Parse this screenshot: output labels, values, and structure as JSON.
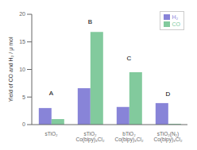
{
  "chart_data": {
    "type": "bar",
    "categories": [
      "sTiO₂",
      "sTiO₂\nCo(bipy)₃Cl₂",
      "bTiO₂\nCo(bipy)₃Cl₂",
      "sTiO₂(N₂)\nCo(bipy)₃Cl₂"
    ],
    "series": [
      {
        "name": "H₂",
        "color": "#8884d8",
        "values": [
          3.0,
          6.6,
          3.2,
          3.9
        ]
      },
      {
        "name": "CO",
        "color": "#82ca9d",
        "values": [
          1.0,
          16.8,
          9.5,
          0.15
        ]
      }
    ],
    "ylabel": "Yield of CO and H₂ / μ mol",
    "ylim": [
      0,
      20
    ],
    "yticks": [
      0,
      5,
      10,
      15,
      20
    ],
    "legend": "upper right",
    "grid": false,
    "annotations": [
      {
        "text": "A",
        "x": "sTiO₂",
        "y": 5.2
      },
      {
        "text": "B",
        "x": "sTiO₂\nCo(bipy)₃Cl₂",
        "y": 18.2
      },
      {
        "text": "C",
        "x": "bTiO₂\nCo(bipy)₃Cl₂",
        "y": 11.5
      },
      {
        "text": "D",
        "x": "sTiO₂(N₂)\nCo(bipy)₃Cl₂",
        "y": 5.0
      }
    ]
  }
}
